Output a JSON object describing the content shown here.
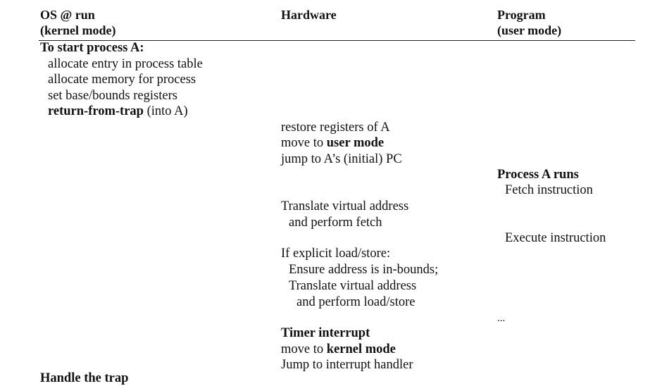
{
  "headers": {
    "os_line1": "OS @ run",
    "os_line2": "(kernel mode)",
    "hw_line1": "Hardware",
    "prog_line1": "Program",
    "prog_line2": "(user mode)"
  },
  "os": {
    "start_title": "To start process A:",
    "alloc_entry": "allocate entry in process table",
    "alloc_mem": "allocate memory for process",
    "set_regs": "set base/bounds registers",
    "rft_bold": "return-from-trap",
    "rft_rest": " (into A)",
    "cut_line": "Handle the trap"
  },
  "hw": {
    "restore": "restore registers of A",
    "move_prefix": "move to ",
    "move_user": "user mode",
    "jump_pc": "jump to A’s (initial) PC",
    "translate": "Translate virtual address",
    "perform_fetch": "and perform fetch",
    "if_explicit": "If explicit load/store:",
    "ensure": "Ensure address is in-bounds;",
    "translate2": "Translate virtual address",
    "perform_ls": "and perform load/store",
    "timer": "Timer interrupt",
    "move_prefix2": "move to ",
    "move_kernel": "kernel mode",
    "jump_handler": "Jump to interrupt handler"
  },
  "prog": {
    "runs": "Process A runs",
    "fetch": "Fetch instruction",
    "execute": "Execute instruction",
    "ellipsis": "..."
  }
}
